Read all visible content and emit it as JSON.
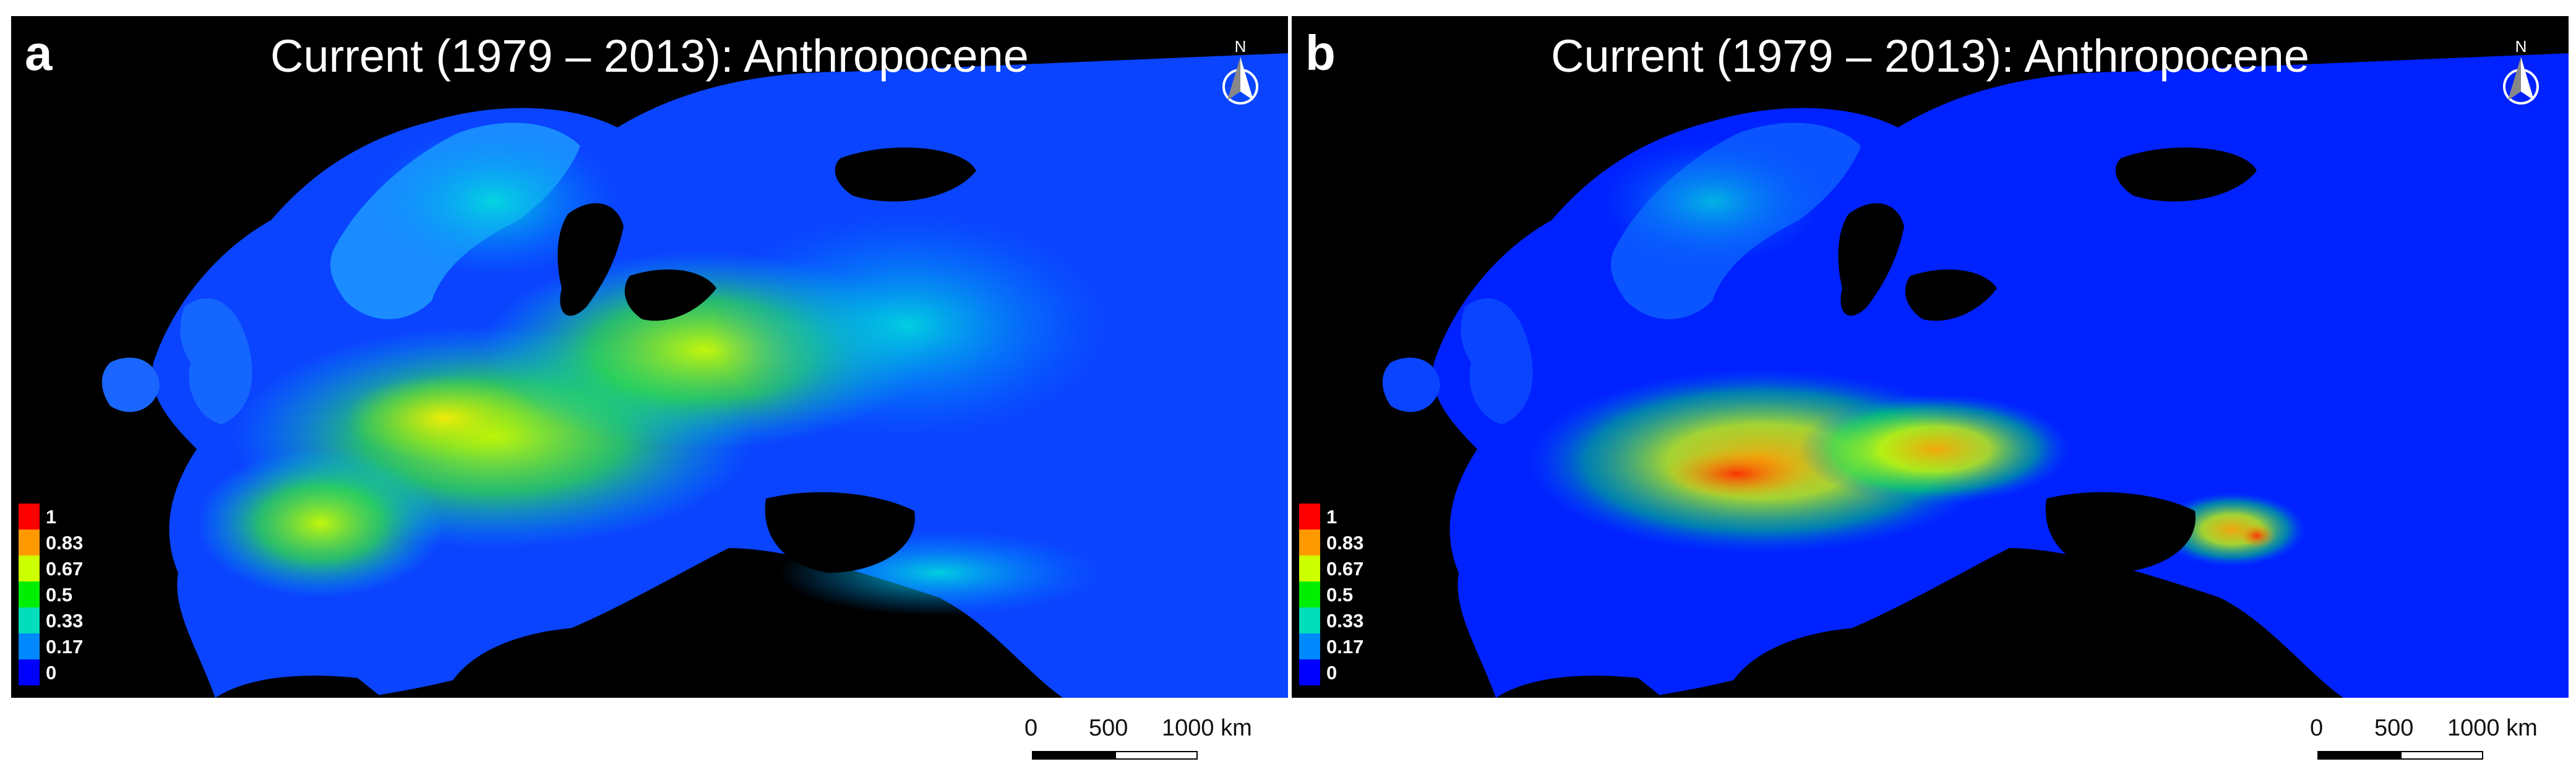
{
  "panels": [
    {
      "letter": "a",
      "title": "Current (1979 – 2013): Anthropocene",
      "north_label": "N",
      "legend": [
        {
          "label": "1",
          "color": "#ff0000"
        },
        {
          "label": "0.83",
          "color": "#ff9900"
        },
        {
          "label": "0.67",
          "color": "#ccff00"
        },
        {
          "label": "0.5",
          "color": "#00ee00"
        },
        {
          "label": "0.33",
          "color": "#00ddbb"
        },
        {
          "label": "0.17",
          "color": "#0088ff"
        },
        {
          "label": "0",
          "color": "#0000ff"
        }
      ],
      "scale": {
        "tick_0": "0",
        "tick_500": "500",
        "tick_1000": "1000 km"
      }
    },
    {
      "letter": "b",
      "title": "Current (1979 – 2013): Anthropocene",
      "north_label": "N",
      "legend": [
        {
          "label": "1",
          "color": "#ff0000"
        },
        {
          "label": "0.83",
          "color": "#ff9900"
        },
        {
          "label": "0.67",
          "color": "#ccff00"
        },
        {
          "label": "0.5",
          "color": "#00ee00"
        },
        {
          "label": "0.33",
          "color": "#00ddbb"
        },
        {
          "label": "0.17",
          "color": "#0088ff"
        },
        {
          "label": "0",
          "color": "#0000ff"
        }
      ],
      "scale": {
        "tick_0": "0",
        "tick_500": "500",
        "tick_1000": "1000 km"
      }
    }
  ],
  "colors": {
    "sea": "#000000",
    "land_low": "#0022ff",
    "land_high": "#ff0000"
  }
}
